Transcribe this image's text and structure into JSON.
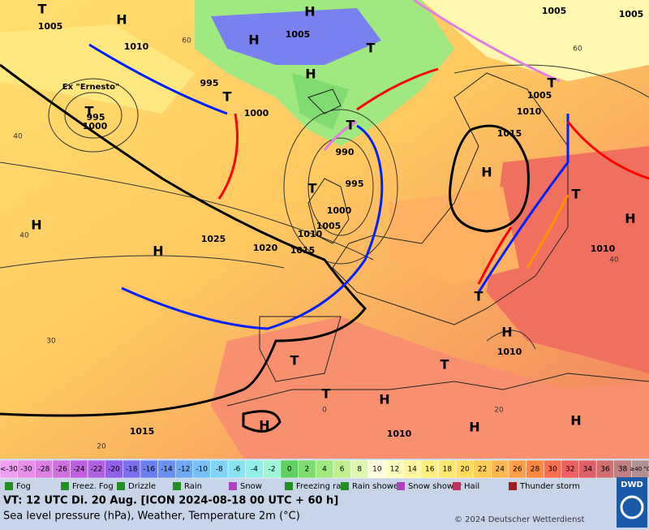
{
  "map": {
    "highs": [
      "H",
      "H",
      "H",
      "H",
      "H",
      "H",
      "H",
      "H",
      "H",
      "H",
      "H",
      "H",
      "H"
    ],
    "lows": [
      "T",
      "T",
      "T",
      "T",
      "T",
      "T",
      "T",
      "T",
      "T",
      "T",
      "T",
      "T"
    ],
    "isobar_labels": [
      "1005",
      "1005",
      "1005",
      "1005",
      "1005",
      "1005",
      "1010",
      "1010",
      "1010",
      "1010",
      "1010",
      "1010",
      "995",
      "995",
      "995",
      "1000",
      "1000",
      "1000",
      "1015",
      "1015",
      "1015",
      "990",
      "1020",
      "1025"
    ],
    "temp_labels": [
      "60",
      "60",
      "40",
      "40",
      "30",
      "20",
      "20",
      "0",
      "40"
    ],
    "storm_name": "Ex \"Ernesto\""
  },
  "scale": [
    {
      "label": "<-30",
      "color": "#f0a0f0"
    },
    {
      "label": "-30",
      "color": "#e890e8"
    },
    {
      "label": "-28",
      "color": "#dc80e4"
    },
    {
      "label": "-26",
      "color": "#d070e0"
    },
    {
      "label": "-24",
      "color": "#c060e0"
    },
    {
      "label": "-22",
      "color": "#b060e0"
    },
    {
      "label": "-20",
      "color": "#9060e8"
    },
    {
      "label": "-18",
      "color": "#7a70f0"
    },
    {
      "label": "-16",
      "color": "#6a80f0"
    },
    {
      "label": "-14",
      "color": "#6a90f0"
    },
    {
      "label": "-12",
      "color": "#70a8f4"
    },
    {
      "label": "-10",
      "color": "#78c0f8"
    },
    {
      "label": "-8",
      "color": "#80d4f8"
    },
    {
      "label": "-6",
      "color": "#88e4f0"
    },
    {
      "label": "-4",
      "color": "#90f0e8"
    },
    {
      "label": "-2",
      "color": "#a0f4d8"
    },
    {
      "label": "0",
      "color": "#60d060"
    },
    {
      "label": "2",
      "color": "#80dc70"
    },
    {
      "label": "4",
      "color": "#a0e880"
    },
    {
      "label": "6",
      "color": "#c0f090"
    },
    {
      "label": "8",
      "color": "#e0f8b0"
    },
    {
      "label": "10",
      "color": "#ffffe0"
    },
    {
      "label": "12",
      "color": "#ffffc0"
    },
    {
      "label": "14",
      "color": "#fff8a0"
    },
    {
      "label": "16",
      "color": "#fff080"
    },
    {
      "label": "18",
      "color": "#ffe870"
    },
    {
      "label": "20",
      "color": "#ffdc60"
    },
    {
      "label": "22",
      "color": "#ffcc58"
    },
    {
      "label": "24",
      "color": "#ffb850"
    },
    {
      "label": "26",
      "color": "#ffa048"
    },
    {
      "label": "28",
      "color": "#ff8840"
    },
    {
      "label": "30",
      "color": "#f87050"
    },
    {
      "label": "32",
      "color": "#f06060"
    },
    {
      "label": "34",
      "color": "#e06068"
    },
    {
      "label": "36",
      "color": "#d07070"
    },
    {
      "label": "38",
      "color": "#c08080"
    },
    {
      "label": "≥40 °C",
      "color": "#b09090"
    }
  ],
  "legend": [
    "Fog",
    "Freez. Fog",
    "Drizzle",
    "Rain",
    "Snow",
    "Freezing rain",
    "Rain shower",
    "Snow shower",
    "Hail",
    "Thunder storm"
  ],
  "footer": {
    "valid": "VT: 12 UTC Di.  20 Aug. [ICON 2024-08-18  00 UTC + 60 h]",
    "subtitle": "Sea level pressure (hPa), Weather, Temperature 2m (°C)",
    "copyright": "© 2024 Deutscher Wetterdienst",
    "logo": "DWD"
  }
}
